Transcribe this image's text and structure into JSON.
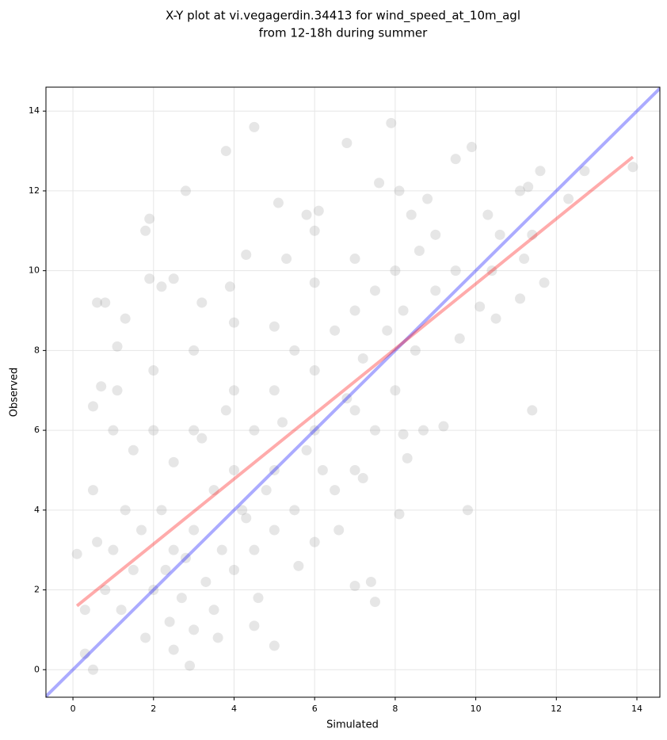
{
  "chart_data": {
    "type": "scatter",
    "title": [
      "X-Y plot at vi.vegagerdin.34413 for wind_speed_at_10m_agl",
      "from 12-18h during summer"
    ],
    "x_label": "Simulated",
    "y_label": "Observed",
    "xlim": [
      -0.67,
      14.57
    ],
    "ylim": [
      -0.69,
      14.6
    ],
    "xticks": [
      0,
      2,
      4,
      6,
      8,
      10,
      12,
      14
    ],
    "yticks": [
      0,
      2,
      4,
      6,
      8,
      10,
      12,
      14
    ],
    "grid": true,
    "series": [
      {
        "color": "#808080",
        "x": [
          4.5,
          7.9,
          3.8,
          6.8,
          9.9,
          9.5,
          13.9,
          11.6,
          12.7,
          11.3,
          11.1,
          7.6,
          8.1,
          2.8,
          1.9,
          1.8,
          5.1,
          5.8,
          6.1,
          6.0,
          8.4,
          8.8,
          10.3,
          10.6,
          12.3,
          11.4,
          11.2,
          11.1,
          11.7,
          11.4,
          9.8,
          8.1,
          8.3,
          7.5,
          7.4,
          7,
          4.5,
          5,
          0.5,
          0.6,
          0.8,
          1.3,
          1.9,
          2.2,
          3.2,
          2.5,
          4.3,
          5.3,
          3.9,
          0.1,
          0.3,
          2.9,
          10.4,
          9.6,
          10.5,
          10.1,
          9.2,
          8.7,
          8.2,
          1.1,
          0.7,
          0.5,
          1,
          1.5,
          2,
          2.5,
          3,
          1.2,
          2.2,
          2.8,
          3.5,
          4,
          4.5,
          5,
          5.5,
          6,
          6.5,
          7,
          7.5,
          8,
          3,
          4,
          5,
          6,
          7,
          2,
          1.5,
          1,
          0.5,
          0.8,
          1.8,
          2.5,
          3,
          3.5,
          4,
          4.5,
          5,
          5.5,
          6,
          6.5,
          7,
          7.5,
          8,
          8.5,
          9,
          9.5,
          2.5,
          3.2,
          3.8,
          4.2,
          4.8,
          5.2,
          5.8,
          6.2,
          6.8,
          7.2,
          7.8,
          8.2,
          1.3,
          1.7,
          2.3,
          2.7,
          3.3,
          3.7,
          4.3,
          0.3,
          0.6,
          1.1,
          2,
          3,
          4,
          5,
          6,
          7,
          2.4,
          3.6,
          4.6,
          5.6,
          6.6,
          7.2,
          8.6,
          9
        ],
        "values": [
          13.6,
          13.7,
          13,
          13.2,
          13.1,
          12.8,
          12.6,
          12.5,
          12.5,
          12.1,
          12,
          12.2,
          12,
          12,
          11.3,
          11,
          11.7,
          11.4,
          11.5,
          11,
          11.4,
          11.8,
          11.4,
          10.9,
          11.8,
          10.9,
          10.3,
          9.3,
          9.7,
          6.5,
          4,
          3.9,
          5.3,
          1.7,
          2.2,
          2.1,
          1.1,
          0.6,
          0,
          9.2,
          9.2,
          8.8,
          9.8,
          9.6,
          9.2,
          9.8,
          10.4,
          10.3,
          9.6,
          2.9,
          0.4,
          0.1,
          10,
          8.3,
          8.8,
          9.1,
          6.1,
          6,
          5.9,
          8.1,
          7.1,
          6.6,
          3,
          2.5,
          2,
          3,
          3.5,
          1.5,
          4,
          2.8,
          4.5,
          5,
          6,
          7,
          8,
          7.5,
          8.5,
          9,
          9.5,
          10,
          6,
          7,
          5,
          6,
          6.5,
          6,
          5.5,
          6,
          4.5,
          2,
          0.8,
          0.5,
          1,
          1.5,
          2.5,
          3,
          3.5,
          4,
          3.2,
          4.5,
          5,
          6,
          7,
          8,
          9.5,
          10,
          5.2,
          5.8,
          6.5,
          4,
          4.5,
          6.2,
          5.5,
          5,
          6.8,
          7.8,
          8.5,
          9,
          4,
          3.5,
          2.5,
          1.8,
          2.2,
          3,
          3.8,
          1.5,
          3.2,
          7,
          7.5,
          8,
          8.7,
          8.6,
          9.7,
          10.3,
          1.2,
          0.8,
          1.8,
          2.6,
          3.5,
          4.8,
          10.5,
          10.9
        ]
      }
    ],
    "lines": [
      {
        "color": "#0000ff",
        "x": [
          -0.67,
          14.57
        ],
        "y": [
          -0.67,
          14.57
        ]
      },
      {
        "color": "#ff0000",
        "x": [
          0.1,
          13.9
        ],
        "y": [
          1.6,
          12.85
        ]
      }
    ]
  }
}
